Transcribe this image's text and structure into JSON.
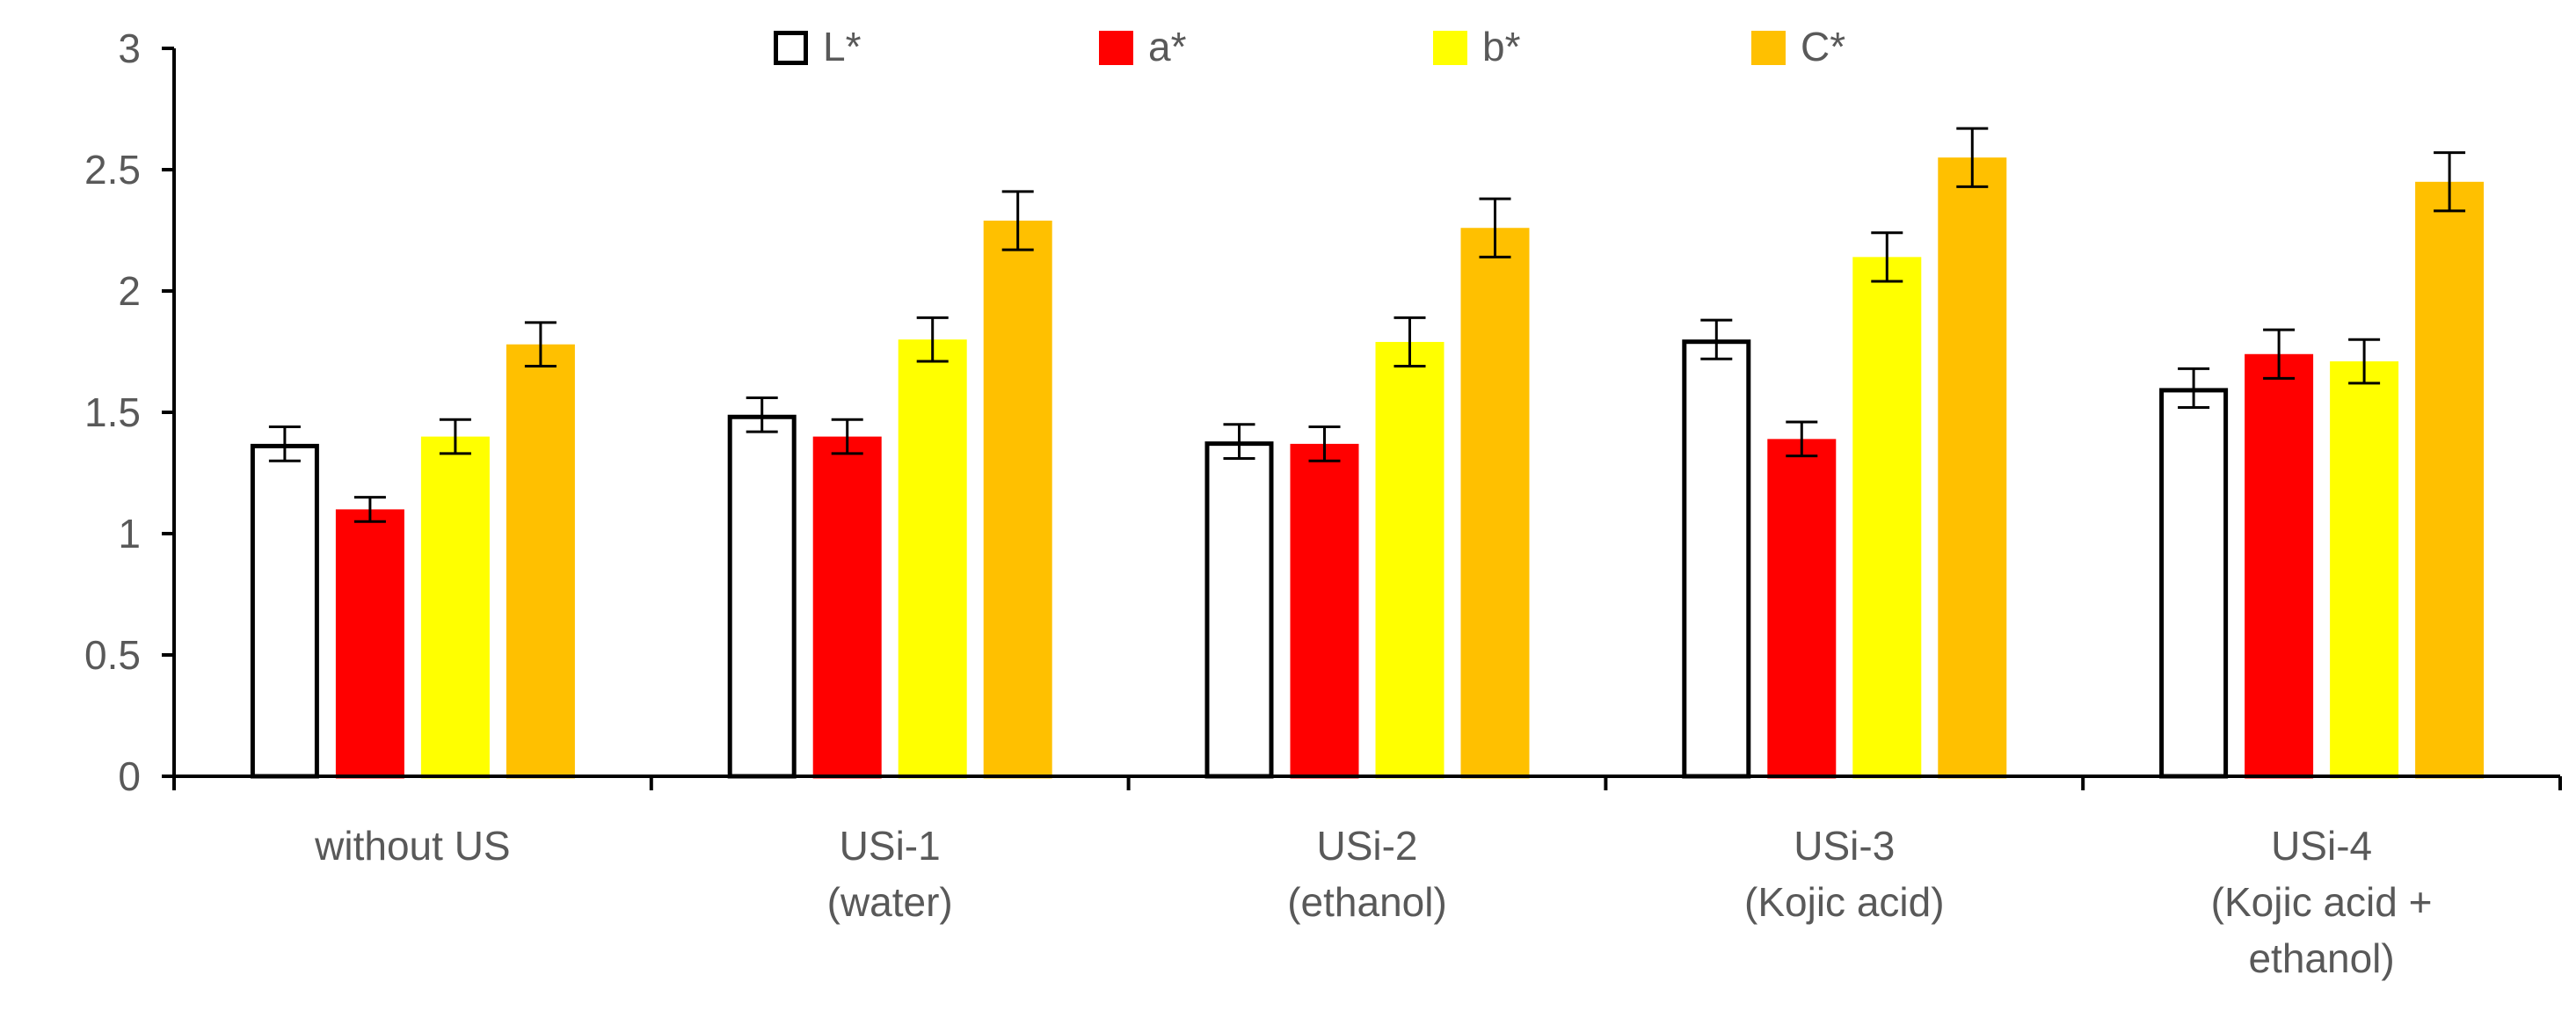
{
  "chart_data": {
    "type": "bar",
    "title": "",
    "xlabel": "",
    "ylabel": "",
    "ylim": [
      0,
      3
    ],
    "yticks": [
      0,
      0.5,
      1,
      1.5,
      2,
      2.5,
      3
    ],
    "ytick_labels": [
      "0",
      "0.5",
      "1",
      "1.5",
      "2",
      "2.5",
      "3"
    ],
    "grid": false,
    "legend_position": "top",
    "categories": [
      [
        "without US"
      ],
      [
        "USi-1",
        "(water)"
      ],
      [
        "USi-2",
        "(ethanol)"
      ],
      [
        "USi-3",
        "(Kojic acid)"
      ],
      [
        "USi-4",
        "(Kojic acid +",
        "ethanol)"
      ]
    ],
    "series": [
      {
        "name": "L*",
        "fill": "#ffffff",
        "stroke": "#000000",
        "values": [
          1.37,
          1.49,
          1.38,
          1.8,
          1.6
        ],
        "errors": [
          0.07,
          0.07,
          0.07,
          0.08,
          0.08
        ]
      },
      {
        "name": "a*",
        "fill": "#ff0000",
        "stroke": "#ff0000",
        "values": [
          1.1,
          1.4,
          1.37,
          1.39,
          1.74
        ],
        "errors": [
          0.05,
          0.07,
          0.07,
          0.07,
          0.1
        ]
      },
      {
        "name": "b*",
        "fill": "#ffff00",
        "stroke": "#ffff00",
        "values": [
          1.4,
          1.8,
          1.79,
          2.14,
          1.71
        ],
        "errors": [
          0.07,
          0.09,
          0.1,
          0.1,
          0.09
        ]
      },
      {
        "name": "C*",
        "fill": "#ffc000",
        "stroke": "#ffc000",
        "values": [
          1.78,
          2.29,
          2.26,
          2.55,
          2.45
        ],
        "errors": [
          0.09,
          0.12,
          0.12,
          0.12,
          0.12
        ]
      }
    ]
  }
}
